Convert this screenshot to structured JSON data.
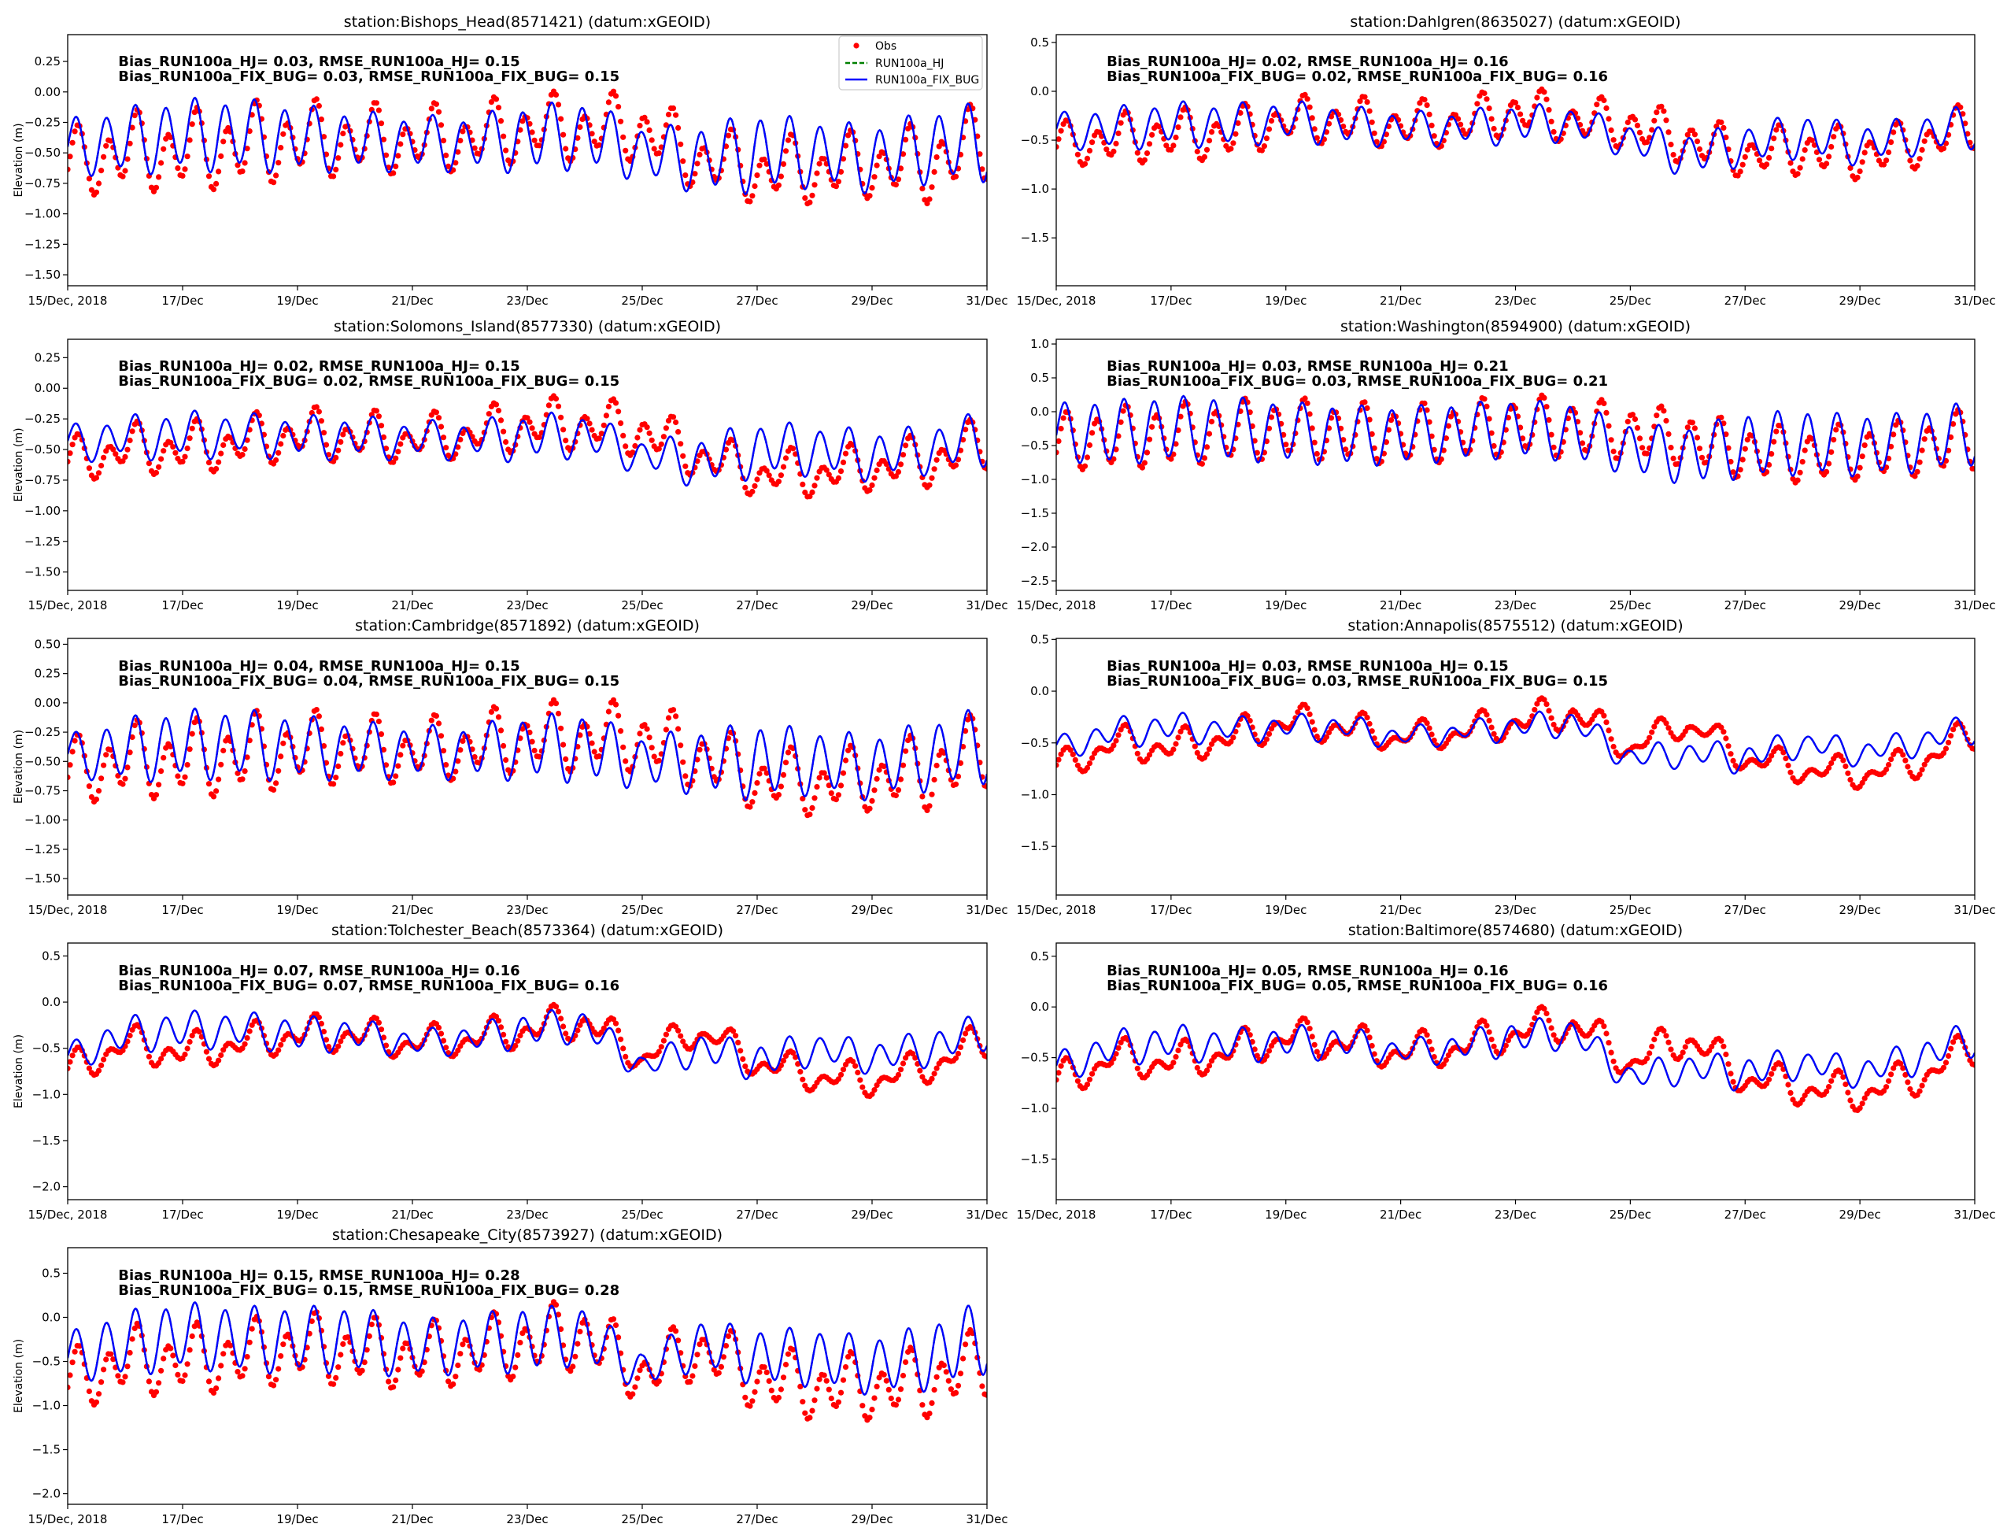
{
  "chart_data": {
    "type": "line",
    "xlabel": "",
    "ylabel": "Elevation (m)",
    "xlim_days": [
      0,
      16
    ],
    "x_tick_days": [
      0,
      2,
      4,
      6,
      8,
      10,
      12,
      14,
      16
    ],
    "x_tick_labels": [
      "15/Dec, 2018",
      "17/Dec",
      "19/Dec",
      "21/Dec",
      "23/Dec",
      "25/Dec",
      "27/Dec",
      "29/Dec",
      "31/Dec"
    ],
    "legend": {
      "placement": "upper-right (first panel only)",
      "entries": [
        "Obs",
        "RUN100a_HJ",
        "RUN100a_FIX_BUG"
      ]
    },
    "colors": {
      "obs": "#ff0000",
      "run_hj": "#008000",
      "run_fix_bug": "#0000ff"
    },
    "series_note": "daily knot values (day 0..16): mean level and semidiurnal amplitude, in metres",
    "panels": [
      {
        "title": "station:Bishops_Head(8571421) (datum:xGEOID)",
        "col": 0,
        "row": 0,
        "stats1": "Bias_RUN100a_HJ=  0.03, RMSE_RUN100a_HJ=  0.15",
        "stats2": "Bias_RUN100a_FIX_BUG=  0.03, RMSE_RUN100a_FIX_BUG=  0.15",
        "ylim": [
          -1.59,
          0.47
        ],
        "yticks": [
          0.25,
          0,
          -0.25,
          -0.5,
          -0.75,
          -1,
          -1.25,
          -1.5
        ],
        "ytick_labels": [
          "0.25",
          "0.00",
          "−0.25",
          "−0.50",
          "−0.75",
          "−1.00",
          "−1.25",
          "−1.50"
        ],
        "model": {
          "mean": [
            -0.45,
            -0.4,
            -0.35,
            -0.35,
            -0.38,
            -0.4,
            -0.42,
            -0.42,
            -0.38,
            -0.35,
            -0.5,
            -0.55,
            -0.5,
            -0.5,
            -0.55,
            -0.45,
            -0.4
          ],
          "amp": [
            0.2,
            0.25,
            0.27,
            0.27,
            0.25,
            0.22,
            0.2,
            0.2,
            0.25,
            0.25,
            0.2,
            0.25,
            0.3,
            0.25,
            0.25,
            0.27,
            0.3
          ]
        },
        "obs": {
          "mean": [
            -0.6,
            -0.5,
            -0.5,
            -0.45,
            -0.4,
            -0.4,
            -0.4,
            -0.38,
            -0.3,
            -0.3,
            -0.3,
            -0.55,
            -0.65,
            -0.65,
            -0.6,
            -0.6,
            -0.4
          ],
          "amp": [
            0.2,
            0.25,
            0.25,
            0.27,
            0.25,
            0.22,
            0.2,
            0.2,
            0.2,
            0.2,
            0.2,
            0.2,
            0.2,
            0.2,
            0.2,
            0.25,
            0.25
          ],
          "diurnal": 0.12
        }
      },
      {
        "title": "station:Solomons_Island(8577330) (datum:xGEOID)",
        "col": 0,
        "row": 1,
        "stats1": "Bias_RUN100a_HJ=  0.02, RMSE_RUN100a_HJ=  0.15",
        "stats2": "Bias_RUN100a_FIX_BUG=  0.02, RMSE_RUN100a_FIX_BUG=  0.15",
        "ylim": [
          -1.65,
          0.4
        ],
        "yticks": [
          0.25,
          0,
          -0.25,
          -0.5,
          -0.75,
          -1,
          -1.25,
          -1.5
        ],
        "ytick_labels": [
          "0.25",
          "0.00",
          "−0.25",
          "−0.50",
          "−0.75",
          "−1.00",
          "−1.25",
          "−1.50"
        ],
        "model": {
          "mean": [
            -0.45,
            -0.4,
            -0.38,
            -0.38,
            -0.4,
            -0.4,
            -0.42,
            -0.42,
            -0.4,
            -0.38,
            -0.55,
            -0.6,
            -0.5,
            -0.5,
            -0.55,
            -0.5,
            -0.4
          ],
          "amp": [
            0.12,
            0.15,
            0.17,
            0.15,
            0.15,
            0.15,
            0.13,
            0.13,
            0.17,
            0.15,
            0.12,
            0.18,
            0.2,
            0.18,
            0.18,
            0.17,
            0.2
          ]
        },
        "obs": {
          "mean": [
            -0.6,
            -0.5,
            -0.5,
            -0.45,
            -0.38,
            -0.4,
            -0.42,
            -0.38,
            -0.3,
            -0.3,
            -0.35,
            -0.55,
            -0.7,
            -0.7,
            -0.65,
            -0.6,
            -0.45
          ],
          "amp": [
            0.12,
            0.14,
            0.15,
            0.15,
            0.15,
            0.15,
            0.13,
            0.13,
            0.15,
            0.15,
            0.15,
            0.13,
            0.13,
            0.13,
            0.13,
            0.15,
            0.15
          ],
          "diurnal": 0.1
        }
      },
      {
        "title": "station:Cambridge(8571892) (datum:xGEOID)",
        "col": 0,
        "row": 2,
        "stats1": "Bias_RUN100a_HJ=  0.04, RMSE_RUN100a_HJ=  0.15",
        "stats2": "Bias_RUN100a_FIX_BUG=  0.04, RMSE_RUN100a_FIX_BUG=  0.15",
        "ylim": [
          -1.64,
          0.55
        ],
        "yticks": [
          0.5,
          0.25,
          0,
          -0.25,
          -0.5,
          -0.75,
          -1,
          -1.25,
          -1.5
        ],
        "ytick_labels": [
          "0.50",
          "0.25",
          "0.00",
          "−0.25",
          "−0.50",
          "−0.75",
          "−1.00",
          "−1.25",
          "−1.50"
        ],
        "model": {
          "mean": [
            -0.45,
            -0.4,
            -0.35,
            -0.35,
            -0.38,
            -0.4,
            -0.42,
            -0.42,
            -0.38,
            -0.38,
            -0.5,
            -0.5,
            -0.5,
            -0.5,
            -0.55,
            -0.45,
            -0.35
          ],
          "amp": [
            0.15,
            0.25,
            0.27,
            0.27,
            0.25,
            0.22,
            0.2,
            0.2,
            0.25,
            0.27,
            0.2,
            0.25,
            0.3,
            0.25,
            0.25,
            0.27,
            0.3
          ]
        },
        "obs": {
          "mean": [
            -0.6,
            -0.5,
            -0.5,
            -0.45,
            -0.4,
            -0.4,
            -0.42,
            -0.38,
            -0.3,
            -0.3,
            -0.3,
            -0.45,
            -0.65,
            -0.7,
            -0.65,
            -0.6,
            -0.4
          ],
          "amp": [
            0.2,
            0.25,
            0.25,
            0.27,
            0.25,
            0.22,
            0.2,
            0.2,
            0.22,
            0.22,
            0.22,
            0.22,
            0.2,
            0.2,
            0.2,
            0.25,
            0.25
          ],
          "diurnal": 0.12
        }
      },
      {
        "title": "station:Tolchester_Beach(8573364) (datum:xGEOID)",
        "col": 0,
        "row": 3,
        "stats1": "Bias_RUN100a_HJ=  0.07, RMSE_RUN100a_HJ=  0.16",
        "stats2": "Bias_RUN100a_FIX_BUG=  0.07, RMSE_RUN100a_FIX_BUG=  0.16",
        "ylim": [
          -2.14,
          0.64
        ],
        "yticks": [
          0.5,
          0,
          -0.5,
          -1,
          -1.5,
          -2
        ],
        "ytick_labels": [
          "0.5",
          "0.0",
          "−0.5",
          "−1.0",
          "−1.5",
          "−2.0"
        ],
        "model": {
          "mean": [
            -0.6,
            -0.35,
            -0.3,
            -0.3,
            -0.35,
            -0.35,
            -0.45,
            -0.4,
            -0.3,
            -0.25,
            -0.7,
            -0.5,
            -0.65,
            -0.5,
            -0.6,
            -0.5,
            -0.3
          ],
          "amp": [
            0.12,
            0.17,
            0.18,
            0.17,
            0.17,
            0.15,
            0.12,
            0.13,
            0.17,
            0.15,
            0.12,
            0.15,
            0.18,
            0.15,
            0.15,
            0.17,
            0.18
          ]
        },
        "obs": {
          "mean": [
            -0.75,
            -0.45,
            -0.55,
            -0.45,
            -0.35,
            -0.35,
            -0.45,
            -0.4,
            -0.3,
            -0.2,
            -0.6,
            -0.3,
            -0.65,
            -0.8,
            -0.85,
            -0.7,
            -0.4
          ],
          "amp": [
            0.1,
            0.12,
            0.12,
            0.12,
            0.12,
            0.12,
            0.1,
            0.1,
            0.12,
            0.12,
            0.1,
            0.08,
            0.1,
            0.1,
            0.1,
            0.1,
            0.12
          ],
          "diurnal": 0.12
        }
      },
      {
        "title": "station:Chesapeake_City(8573927) (datum:xGEOID)",
        "col": 0,
        "row": 4,
        "stats1": "Bias_RUN100a_HJ=  0.15, RMSE_RUN100a_HJ=  0.28",
        "stats2": "Bias_RUN100a_FIX_BUG=  0.15, RMSE_RUN100a_FIX_BUG=  0.28",
        "ylim": [
          -2.12,
          0.79
        ],
        "yticks": [
          0.5,
          0,
          -0.5,
          -1,
          -1.5,
          -2
        ],
        "ytick_labels": [
          "0.5",
          "0.0",
          "−0.5",
          "−1.0",
          "−1.5",
          "−2.0"
        ],
        "model": {
          "mean": [
            -0.45,
            -0.3,
            -0.2,
            -0.25,
            -0.25,
            -0.25,
            -0.35,
            -0.3,
            -0.25,
            -0.2,
            -0.6,
            -0.3,
            -0.45,
            -0.45,
            -0.55,
            -0.45,
            -0.2
          ],
          "amp": [
            0.25,
            0.35,
            0.35,
            0.35,
            0.35,
            0.35,
            0.3,
            0.3,
            0.35,
            0.3,
            0.2,
            0.25,
            0.3,
            0.3,
            0.3,
            0.35,
            0.4
          ]
        },
        "obs": {
          "mean": [
            -0.75,
            -0.5,
            -0.5,
            -0.45,
            -0.35,
            -0.4,
            -0.45,
            -0.4,
            -0.3,
            -0.2,
            -0.65,
            -0.35,
            -0.7,
            -0.8,
            -0.8,
            -0.75,
            -0.5
          ],
          "amp": [
            0.25,
            0.3,
            0.3,
            0.3,
            0.3,
            0.3,
            0.28,
            0.28,
            0.3,
            0.3,
            0.25,
            0.25,
            0.28,
            0.28,
            0.28,
            0.3,
            0.3
          ],
          "diurnal": 0.15
        }
      },
      {
        "title": "station:Dahlgren(8635027) (datum:xGEOID)",
        "col": 1,
        "row": 0,
        "stats1": "Bias_RUN100a_HJ=  0.02, RMSE_RUN100a_HJ=  0.16",
        "stats2": "Bias_RUN100a_FIX_BUG=  0.02, RMSE_RUN100a_FIX_BUG=  0.16",
        "ylim": [
          -1.99,
          0.58
        ],
        "yticks": [
          0.5,
          0,
          -0.5,
          -1,
          -1.5
        ],
        "ytick_labels": [
          "0.5",
          "0.0",
          "−0.5",
          "−1.0",
          "−1.5"
        ],
        "model": {
          "mean": [
            -0.4,
            -0.38,
            -0.33,
            -0.35,
            -0.3,
            -0.35,
            -0.38,
            -0.38,
            -0.33,
            -0.33,
            -0.5,
            -0.65,
            -0.55,
            -0.45,
            -0.55,
            -0.45,
            -0.35
          ],
          "amp": [
            0.15,
            0.2,
            0.2,
            0.2,
            0.18,
            0.18,
            0.15,
            0.15,
            0.18,
            0.15,
            0.15,
            0.2,
            0.18,
            0.2,
            0.18,
            0.17,
            0.2
          ]
        },
        "obs": {
          "mean": [
            -0.55,
            -0.5,
            -0.45,
            -0.45,
            -0.3,
            -0.3,
            -0.35,
            -0.33,
            -0.2,
            -0.3,
            -0.35,
            -0.5,
            -0.65,
            -0.6,
            -0.65,
            -0.55,
            -0.35
          ],
          "amp": [
            0.15,
            0.2,
            0.2,
            0.2,
            0.18,
            0.18,
            0.18,
            0.18,
            0.18,
            0.18,
            0.18,
            0.2,
            0.18,
            0.2,
            0.2,
            0.18,
            0.18
          ],
          "diurnal": 0.1
        }
      },
      {
        "title": "station:Washington(8594900) (datum:xGEOID)",
        "col": 1,
        "row": 1,
        "stats1": "Bias_RUN100a_HJ=  0.03, RMSE_RUN100a_HJ=  0.21",
        "stats2": "Bias_RUN100a_FIX_BUG=  0.03, RMSE_RUN100a_FIX_BUG=  0.21",
        "ylim": [
          -2.64,
          1.07
        ],
        "yticks": [
          1,
          0.5,
          0,
          -0.5,
          -1,
          -1.5,
          -2,
          -2.5
        ],
        "ytick_labels": [
          "1.0",
          "0.5",
          "0.0",
          "−0.5",
          "−1.0",
          "−1.5",
          "−2.0",
          "−2.5"
        ],
        "model": {
          "mean": [
            -0.3,
            -0.3,
            -0.25,
            -0.25,
            -0.3,
            -0.35,
            -0.35,
            -0.3,
            -0.25,
            -0.3,
            -0.55,
            -0.65,
            -0.5,
            -0.45,
            -0.5,
            -0.45,
            -0.3
          ],
          "amp": [
            0.4,
            0.45,
            0.45,
            0.45,
            0.42,
            0.42,
            0.4,
            0.4,
            0.4,
            0.4,
            0.35,
            0.4,
            0.45,
            0.45,
            0.42,
            0.42,
            0.45
          ]
        },
        "obs": {
          "mean": [
            -0.45,
            -0.4,
            -0.35,
            -0.3,
            -0.25,
            -0.3,
            -0.35,
            -0.3,
            -0.2,
            -0.25,
            -0.3,
            -0.4,
            -0.6,
            -0.65,
            -0.6,
            -0.55,
            -0.4
          ],
          "amp": [
            0.35,
            0.4,
            0.4,
            0.4,
            0.38,
            0.38,
            0.38,
            0.38,
            0.38,
            0.38,
            0.35,
            0.35,
            0.35,
            0.35,
            0.35,
            0.35,
            0.4
          ],
          "diurnal": 0.1
        }
      },
      {
        "title": "station:Annapolis(8575512) (datum:xGEOID)",
        "col": 1,
        "row": 2,
        "stats1": "Bias_RUN100a_HJ=  0.03, RMSE_RUN100a_HJ=  0.15",
        "stats2": "Bias_RUN100a_FIX_BUG=  0.03, RMSE_RUN100a_FIX_BUG=  0.15",
        "ylim": [
          -1.97,
          0.51
        ],
        "yticks": [
          0.5,
          0,
          -0.5,
          -1,
          -1.5
        ],
        "ytick_labels": [
          "0.5",
          "0.0",
          "−0.5",
          "−1.0",
          "−1.5"
        ],
        "model": {
          "mean": [
            -0.55,
            -0.4,
            -0.35,
            -0.38,
            -0.35,
            -0.35,
            -0.45,
            -0.4,
            -0.35,
            -0.3,
            -0.65,
            -0.6,
            -0.65,
            -0.5,
            -0.6,
            -0.5,
            -0.35
          ],
          "amp": [
            0.08,
            0.12,
            0.12,
            0.1,
            0.1,
            0.1,
            0.08,
            0.08,
            0.1,
            0.1,
            0.1,
            0.1,
            0.12,
            0.1,
            0.1,
            0.1,
            0.12
          ]
        },
        "obs": {
          "mean": [
            -0.75,
            -0.5,
            -0.55,
            -0.45,
            -0.3,
            -0.35,
            -0.45,
            -0.4,
            -0.3,
            -0.2,
            -0.55,
            -0.3,
            -0.65,
            -0.75,
            -0.8,
            -0.7,
            -0.4
          ],
          "amp": [
            0.07,
            0.1,
            0.1,
            0.1,
            0.1,
            0.1,
            0.07,
            0.08,
            0.1,
            0.1,
            0.08,
            0.06,
            0.08,
            0.08,
            0.08,
            0.08,
            0.1
          ],
          "diurnal": 0.1
        }
      },
      {
        "title": "station:Baltimore(8574680) (datum:xGEOID)",
        "col": 1,
        "row": 3,
        "stats1": "Bias_RUN100a_HJ=  0.05, RMSE_RUN100a_HJ=  0.16",
        "stats2": "Bias_RUN100a_FIX_BUG=  0.05, RMSE_RUN100a_FIX_BUG=  0.16",
        "ylim": [
          -1.9,
          0.63
        ],
        "yticks": [
          0.5,
          0,
          -0.5,
          -1,
          -1.5
        ],
        "ytick_labels": [
          "0.5",
          "0.0",
          "−0.5",
          "−1.0",
          "−1.5"
        ],
        "model": {
          "mean": [
            -0.6,
            -0.4,
            -0.35,
            -0.38,
            -0.35,
            -0.35,
            -0.45,
            -0.4,
            -0.3,
            -0.25,
            -0.7,
            -0.6,
            -0.65,
            -0.55,
            -0.65,
            -0.5,
            -0.3
          ],
          "amp": [
            0.12,
            0.15,
            0.15,
            0.14,
            0.14,
            0.14,
            0.1,
            0.12,
            0.15,
            0.12,
            0.12,
            0.12,
            0.15,
            0.12,
            0.12,
            0.14,
            0.15
          ]
        },
        "obs": {
          "mean": [
            -0.75,
            -0.5,
            -0.55,
            -0.45,
            -0.3,
            -0.35,
            -0.45,
            -0.4,
            -0.25,
            -0.15,
            -0.55,
            -0.3,
            -0.7,
            -0.8,
            -0.85,
            -0.7,
            -0.4
          ],
          "amp": [
            0.1,
            0.1,
            0.1,
            0.1,
            0.1,
            0.1,
            0.1,
            0.1,
            0.1,
            0.1,
            0.1,
            0.1,
            0.1,
            0.1,
            0.1,
            0.1,
            0.1
          ],
          "diurnal": 0.12
        }
      }
    ]
  }
}
